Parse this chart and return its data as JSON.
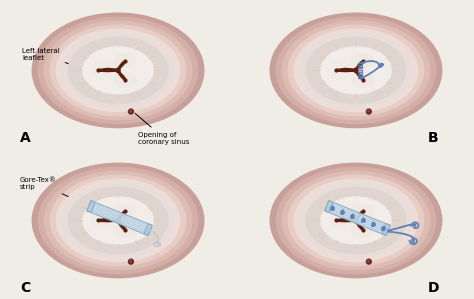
{
  "bg_color": "#f0ece6",
  "outer1": "#c8a09a",
  "outer2": "#d4aea8",
  "outer3": "#ddbcb6",
  "mid1": "#e8ccc6",
  "mid2": "#edddd8",
  "inner_bg": "#e8ddd8",
  "valve_tissue": "#f2ede8",
  "valve_dark": "#5a1f12",
  "strip_color": "#cce0ee",
  "strip_border": "#88aac0",
  "strip_fold": "#b0ccde",
  "suture_color": "#6080b8",
  "hole_color": "#6b2a20",
  "figure_width": 4.74,
  "figure_height": 2.99,
  "dpi": 100,
  "annotations": {
    "left_lateral": "Left lateral\nleaflet",
    "coronary": "Opening of\ncoronary sinus",
    "gore_tex": "Gore-Tex®\nstrip"
  }
}
